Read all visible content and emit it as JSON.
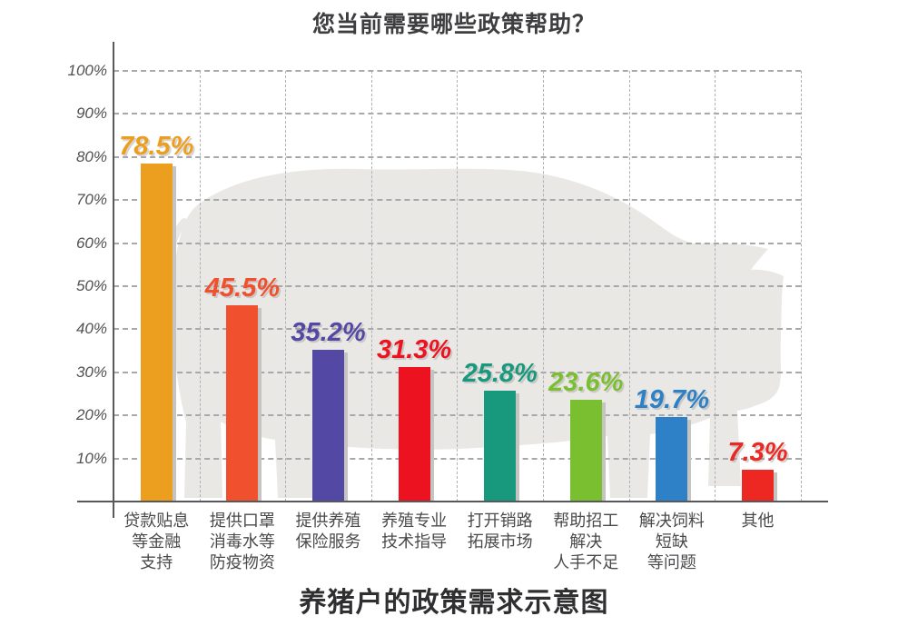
{
  "titles": {
    "top": "您当前需要哪些政策帮助？",
    "bottom": "养猪户的政策需求示意图"
  },
  "watermark_icon": "pig-silhouette",
  "colors": {
    "axis": "#57585a",
    "grid": "#a6a8ab",
    "pig_watermark": "#eae8e5",
    "bar_shadow": "#c6c4c1"
  },
  "chart_data": {
    "type": "bar",
    "title": "您当前需要哪些政策帮助？",
    "caption": "养猪户的政策需求示意图",
    "ylabel": "",
    "xlabel": "",
    "ylim": [
      0,
      100
    ],
    "grid": "dashed",
    "legend": "none",
    "yticks": [
      "100%",
      "90%",
      "80%",
      "70%",
      "60%",
      "50%",
      "40%",
      "30%",
      "20%",
      "10%"
    ],
    "categories": [
      "贷款贴息等金融支持",
      "提供口罩消毒水等防疫物资",
      "提供养殖保险服务",
      "养殖专业技术指导",
      "打开销路拓展市场",
      "帮助招工解决人手不足",
      "解决饲料短缺等问题",
      "其他"
    ],
    "category_lines": [
      [
        "贷款贴息",
        "等金融",
        "支持"
      ],
      [
        "提供口罩",
        "消毒水等",
        "防疫物资"
      ],
      [
        "提供养殖",
        "保险服务"
      ],
      [
        "养殖专业",
        "技术指导"
      ],
      [
        "打开销路",
        "拓展市场"
      ],
      [
        "帮助招工",
        "解决",
        "人手不足"
      ],
      [
        "解决饲料",
        "短缺",
        "等问题"
      ],
      [
        "其他"
      ]
    ],
    "values": [
      78.5,
      45.5,
      35.2,
      31.3,
      25.8,
      23.6,
      19.7,
      7.3
    ],
    "value_labels": [
      "78.5%",
      "45.5%",
      "35.2%",
      "31.3%",
      "25.8%",
      "23.6%",
      "19.7%",
      "7.3%"
    ],
    "bar_colors": [
      "#EC9E1E",
      "#F1502F",
      "#5348A4",
      "#EC1220",
      "#18997E",
      "#7ABF2F",
      "#2E81C6",
      "#ED2823"
    ]
  }
}
